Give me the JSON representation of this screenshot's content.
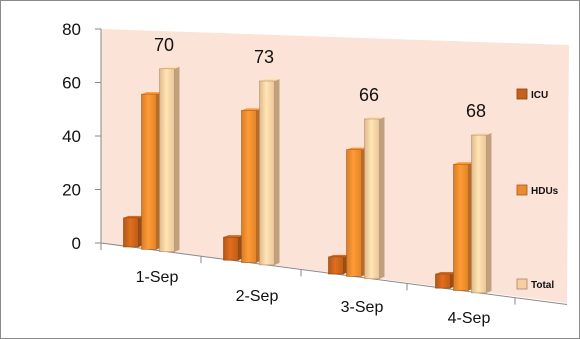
{
  "chart_data": {
    "type": "bar",
    "title": "",
    "xlabel": "",
    "ylabel": "",
    "ylim": [
      0,
      80
    ],
    "yticks": [
      0,
      20,
      40,
      60,
      80
    ],
    "categories": [
      "1-Sep",
      "2-Sep",
      "3-Sep",
      "4-Sep"
    ],
    "series": [
      {
        "name": "ICU",
        "values": [
          11,
          9,
          7,
          6
        ],
        "color": "#C8621A"
      },
      {
        "name": "HDUs",
        "values": [
          59,
          60,
          52,
          54
        ],
        "color": "#EE8A2E"
      },
      {
        "name": "Total",
        "values": [
          70,
          73,
          66,
          68
        ],
        "color": "#F8CDA0"
      }
    ],
    "data_labels": [
      "70",
      "73",
      "66",
      "68"
    ],
    "legend_position": "right",
    "grid": false,
    "plot_area_color": "#FCE3D8"
  }
}
